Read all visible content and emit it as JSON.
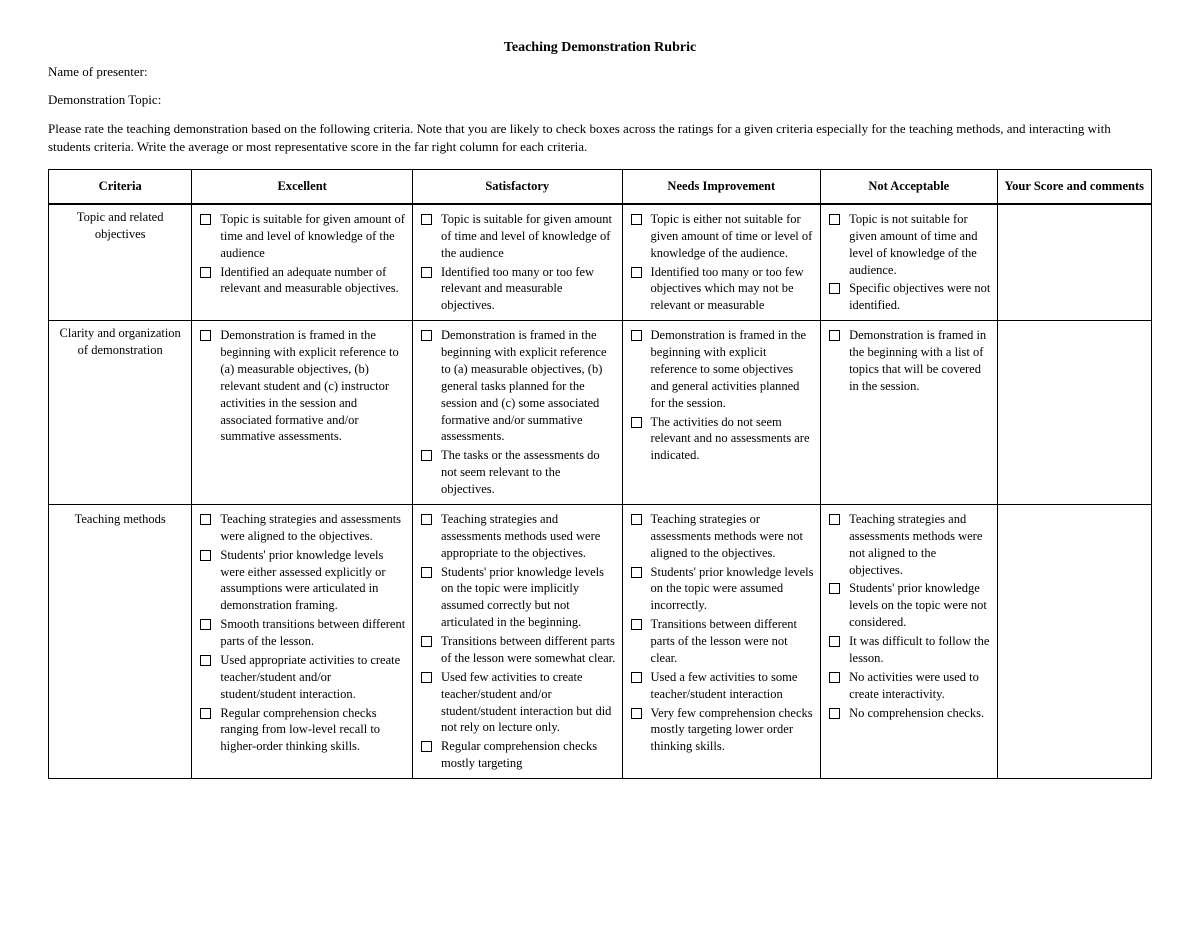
{
  "title": "Teaching Demonstration Rubric",
  "fields": {
    "presenter_label": "Name of presenter:",
    "topic_label": "Demonstration Topic:"
  },
  "instructions": "Please rate the teaching demonstration based on the following criteria. Note that you are likely to check boxes across the ratings for a given criteria especially for the teaching methods, and interacting with students criteria. Write the average or most representative score in the far right column for each criteria.",
  "columns": {
    "criteria": "Criteria",
    "excellent": "Excellent",
    "satisfactory": "Satisfactory",
    "needs": "Needs Improvement",
    "notacc": "Not Acceptable",
    "score": "Your Score and comments"
  },
  "rows": [
    {
      "criteria": "Topic and related objectives",
      "align": "middle",
      "excellent": [
        "Topic is suitable for given amount of time and level of knowledge of the audience",
        "Identified an adequate number of relevant and measurable objectives."
      ],
      "satisfactory": [
        "Topic is suitable for given amount of time and level of knowledge of the audience",
        "Identified too many or too few relevant and measurable objectives."
      ],
      "needs": [
        "Topic is either not suitable for given amount of time or level of knowledge of the audience.",
        "Identified too many or too few objectives which may not be relevant or measurable"
      ],
      "notacc": [
        "Topic is not suitable for given amount of time and level of knowledge of the audience.",
        "Specific objectives were not identified."
      ]
    },
    {
      "criteria": "Clarity and organization of demonstration",
      "align": "middle",
      "excellent": [
        "Demonstration is framed in the beginning with explicit reference to (a) measurable objectives, (b) relevant student and (c) instructor activities in the session and associated formative and/or summative assessments."
      ],
      "satisfactory": [
        "Demonstration is framed in the beginning with explicit reference to (a) measurable objectives, (b) general tasks planned for the session and (c) some associated formative and/or summative assessments.",
        "The tasks or the assessments do not seem relevant to the objectives."
      ],
      "needs": [
        "Demonstration is framed in the beginning with explicit reference to some objectives and general activities planned for the session.",
        "The activities do not seem relevant and no assessments are indicated."
      ],
      "notacc": [
        "Demonstration is framed in the beginning with a list of topics that will be covered in the session."
      ]
    },
    {
      "criteria": "Teaching methods",
      "align": "top",
      "excellent": [
        "Teaching strategies and assessments were aligned to the objectives.",
        "Students' prior knowledge levels were either assessed explicitly or assumptions were articulated in demonstration framing.",
        "Smooth transitions between different parts of the lesson.",
        "Used appropriate activities to create teacher/student and/or student/student interaction.",
        "Regular comprehension checks ranging from low-level recall to higher-order thinking skills."
      ],
      "satisfactory": [
        "Teaching strategies and assessments methods used were appropriate to the objectives.",
        "Students' prior knowledge levels on the topic were implicitly assumed correctly but not articulated in the beginning.",
        "Transitions between different parts of the lesson were somewhat clear.",
        "Used few activities to create teacher/student and/or student/student interaction but did not rely on lecture only.",
        "Regular comprehension checks mostly targeting"
      ],
      "needs": [
        "Teaching strategies or assessments methods were not aligned to the objectives.",
        "Students' prior knowledge levels on the topic were assumed incorrectly.",
        "Transitions between different parts of the lesson were not clear.",
        "Used  a few activities to some teacher/student interaction",
        "Very few comprehension checks mostly targeting lower order thinking skills."
      ],
      "notacc": [
        "Teaching strategies and assessments methods were not aligned to the objectives.",
        "Students' prior knowledge levels on the topic were not considered.",
        "It was difficult to follow the lesson.",
        "No activities were used to create interactivity.",
        "No comprehension checks."
      ]
    }
  ]
}
